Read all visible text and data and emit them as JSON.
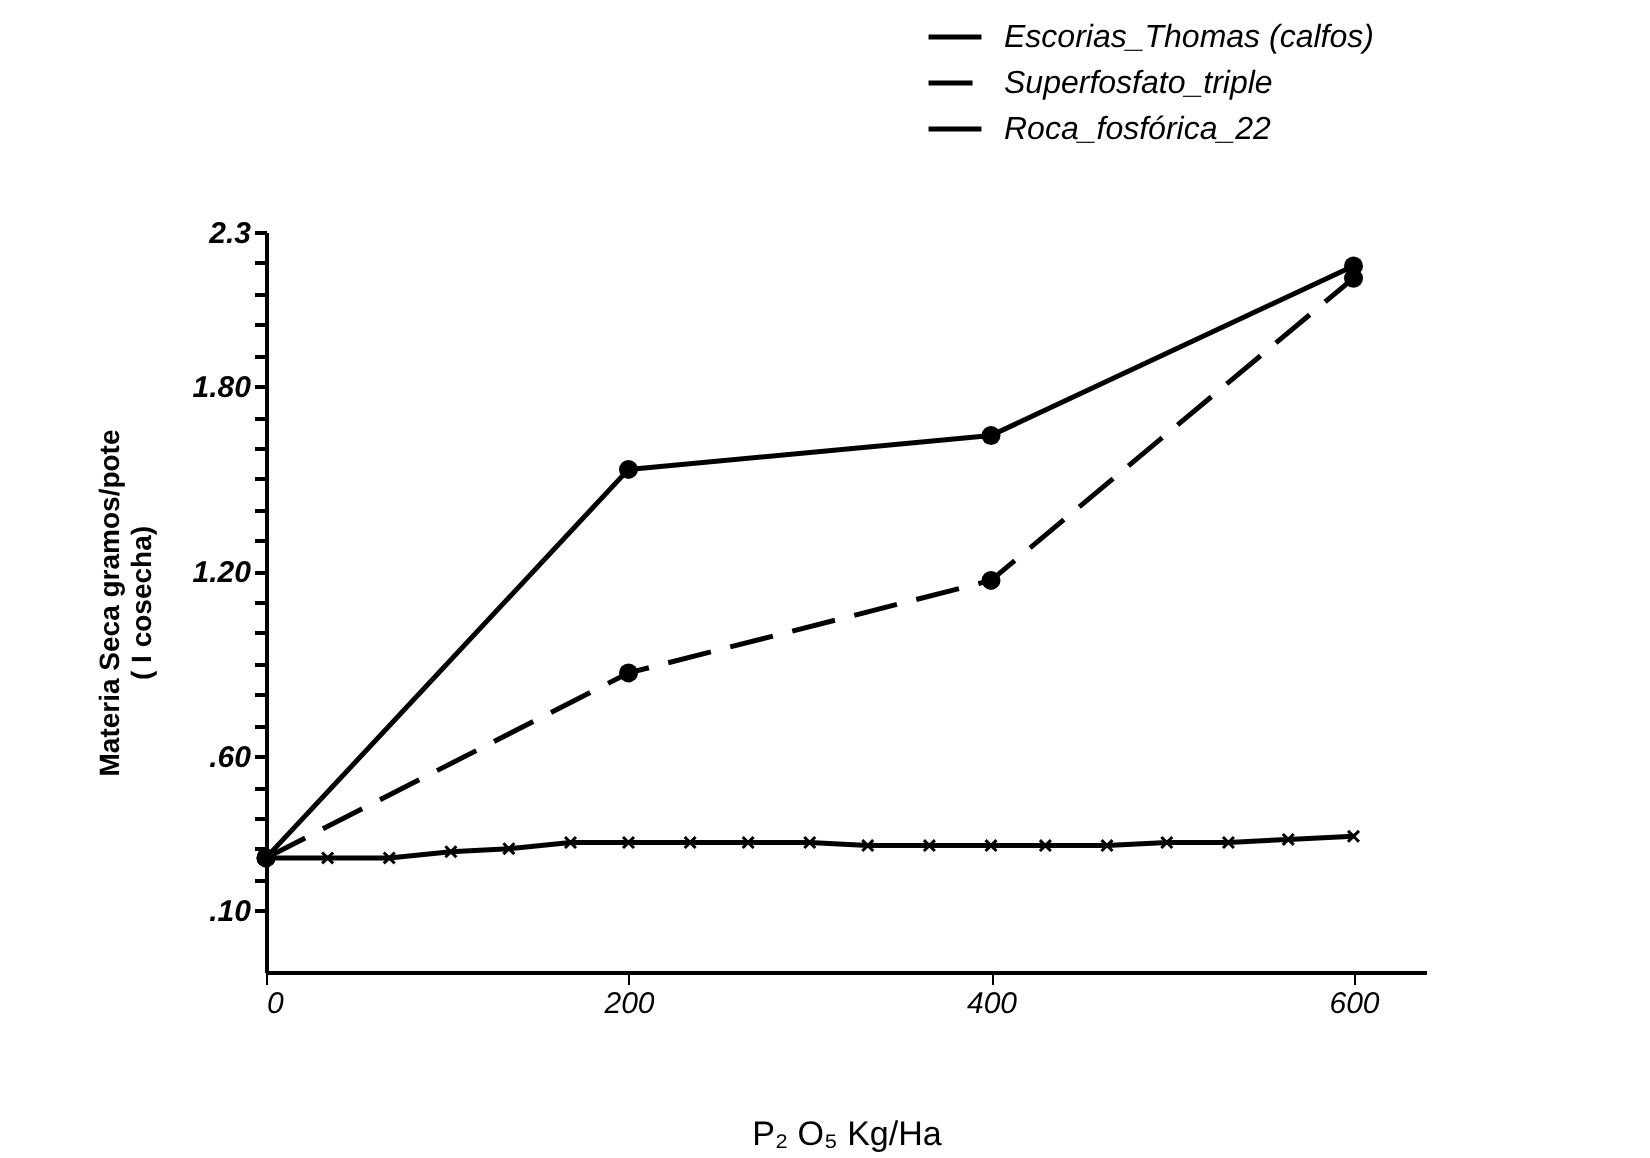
{
  "chart_data": {
    "type": "line",
    "xlabel": "P₂ O₅ Kg/Ha",
    "ylabel": "Materia Seca gramos/pote\n( I cosecha)",
    "legend": "top right",
    "grid": false,
    "xlim": [
      0,
      640
    ],
    "xticks": [
      0,
      200,
      400,
      600
    ],
    "ylim": [
      -0.1,
      2.3
    ],
    "yticks": [
      {
        "value": 0.1,
        "label": ".10"
      },
      {
        "value": 0.2,
        "label": null
      },
      {
        "value": 0.3,
        "label": null
      },
      {
        "value": 0.4,
        "label": null
      },
      {
        "value": 0.5,
        "label": null
      },
      {
        "value": 0.6,
        "label": ".60"
      },
      {
        "value": 0.7,
        "label": null
      },
      {
        "value": 0.8,
        "label": null
      },
      {
        "value": 0.9,
        "label": null
      },
      {
        "value": 1.0,
        "label": null
      },
      {
        "value": 1.1,
        "label": null
      },
      {
        "value": 1.2,
        "label": "1.20"
      },
      {
        "value": 1.3,
        "label": null
      },
      {
        "value": 1.4,
        "label": null
      },
      {
        "value": 1.5,
        "label": null
      },
      {
        "value": 1.6,
        "label": null
      },
      {
        "value": 1.7,
        "label": null
      },
      {
        "value": 1.8,
        "label": "1.80"
      },
      {
        "value": 1.9,
        "label": null
      },
      {
        "value": 2.0,
        "label": null
      },
      {
        "value": 2.1,
        "label": null
      },
      {
        "value": 2.2,
        "label": null
      },
      {
        "value": 2.3,
        "label": "2.3"
      }
    ],
    "series": [
      {
        "name": "Escorias_Thomas (calfos)",
        "color": "#000000",
        "line_style": "solid",
        "marker": "circle",
        "x": [
          0,
          200,
          400,
          600
        ],
        "values": [
          0.27,
          1.53,
          1.64,
          2.19
        ]
      },
      {
        "name": "Superfosfato_triple",
        "color": "#000000",
        "line_style": "dashed",
        "marker": "circle",
        "x": [
          0,
          200,
          400,
          600
        ],
        "values": [
          0.27,
          0.87,
          1.17,
          2.15
        ]
      },
      {
        "name": "Roca_fosfórica_22",
        "color": "#000000",
        "line_style": "solid",
        "marker": "cross",
        "x": [
          0,
          34,
          68,
          102,
          134,
          168,
          200,
          234,
          266,
          300,
          332,
          366,
          400,
          430,
          464,
          497,
          531,
          564,
          600
        ],
        "values": [
          0.27,
          0.27,
          0.27,
          0.29,
          0.3,
          0.32,
          0.32,
          0.32,
          0.32,
          0.32,
          0.31,
          0.31,
          0.31,
          0.31,
          0.31,
          0.32,
          0.32,
          0.33,
          0.34
        ]
      }
    ]
  }
}
